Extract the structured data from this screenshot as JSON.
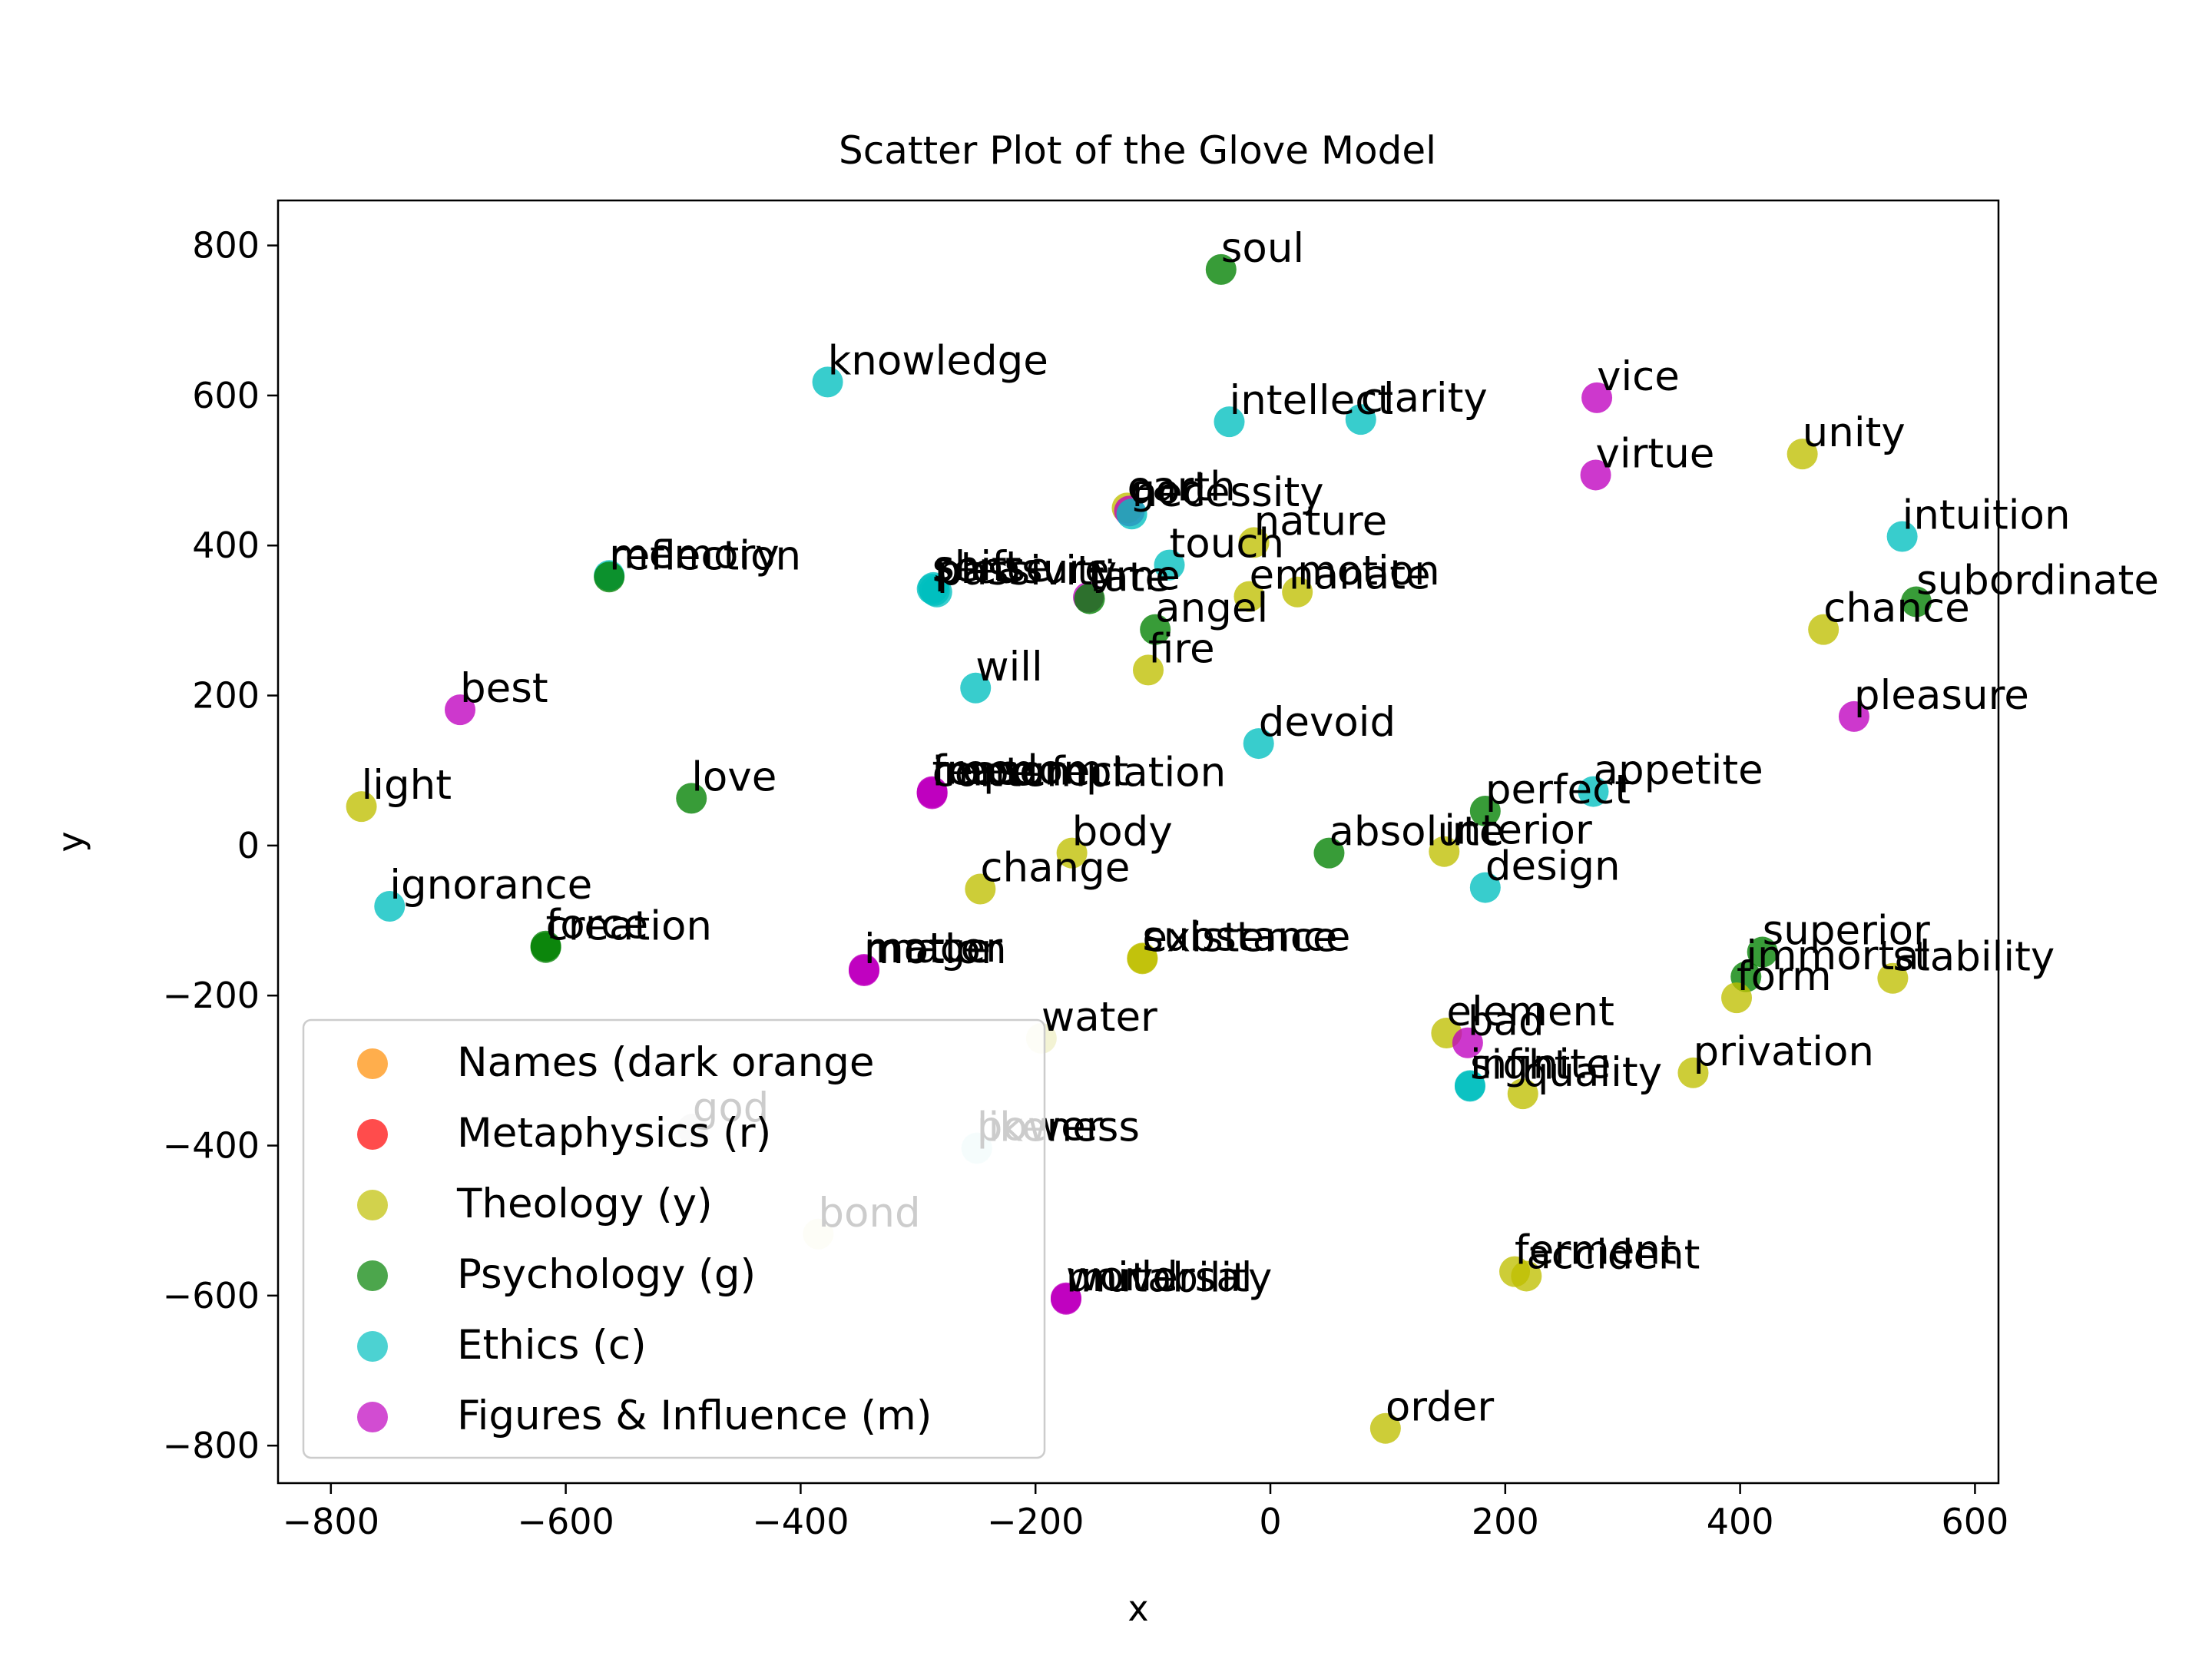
{
  "chart_data": {
    "type": "scatter",
    "title": "Scatter Plot of the Glove Model",
    "xlabel": "x",
    "ylabel": "y",
    "xlim": [
      -845,
      620
    ],
    "ylim": [
      -850,
      860
    ],
    "xticks": [
      -800,
      -600,
      -400,
      -200,
      0,
      200,
      400,
      600
    ],
    "yticks": [
      800,
      600,
      400,
      200,
      0,
      -200,
      -400,
      -600,
      -800
    ],
    "xtick_labels": [
      "−800",
      "−600",
      "−400",
      "−200",
      "0",
      "200",
      "400",
      "600"
    ],
    "ytick_labels": [
      "800",
      "600",
      "400",
      "200",
      "0",
      "−200",
      "−400",
      "−600",
      "−800"
    ],
    "grid": false,
    "legend_position": "lower-left",
    "legend": [
      {
        "label": "Names (dark orange",
        "color": "#ff8c00"
      },
      {
        "label": "Metaphysics (r)",
        "color": "#ff0000"
      },
      {
        "label": "Theology (y)",
        "color": "#bfbf00"
      },
      {
        "label": "Psychology (g)",
        "color": "#008000"
      },
      {
        "label": "Ethics (c)",
        "color": "#00bfbf"
      },
      {
        "label": "Figures & Influence (m)",
        "color": "#bf00bf"
      }
    ],
    "points": [
      {
        "label": "soul",
        "x": -42,
        "y": 768,
        "color": "#008000"
      },
      {
        "label": "knowledge",
        "x": -377,
        "y": 618,
        "color": "#00bfbf"
      },
      {
        "label": "intellect",
        "x": -35,
        "y": 565,
        "color": "#00bfbf"
      },
      {
        "label": "clarity",
        "x": 77,
        "y": 568,
        "color": "#00bfbf"
      },
      {
        "label": "vice",
        "x": 278,
        "y": 597,
        "color": "#bf00bf"
      },
      {
        "label": "virtue",
        "x": 277,
        "y": 494,
        "color": "#bf00bf"
      },
      {
        "label": "unity",
        "x": 453,
        "y": 522,
        "color": "#bfbf00"
      },
      {
        "label": "earth",
        "x": -122,
        "y": 450,
        "color": "#bfbf00"
      },
      {
        "label": "god",
        "x": -120,
        "y": 446,
        "color": "#bf00bf"
      },
      {
        "label": "necessity",
        "x": -118,
        "y": 442,
        "color": "#00bfbf"
      },
      {
        "label": "nature",
        "x": -14,
        "y": 404,
        "color": "#bfbf00"
      },
      {
        "label": "touch",
        "x": -86,
        "y": 374,
        "color": "#00bfbf"
      },
      {
        "label": "intuition",
        "x": 538,
        "y": 412,
        "color": "#00bfbf"
      },
      {
        "label": "memory",
        "x": -563,
        "y": 360,
        "color": "#00bfbf"
      },
      {
        "label": "reflection",
        "x": -563,
        "y": 358,
        "color": "#008000"
      },
      {
        "label": "sense",
        "x": -288,
        "y": 342,
        "color": "#00bfbf"
      },
      {
        "label": "pleasure",
        "x": -286,
        "y": 340,
        "color": "#00bfbf"
      },
      {
        "label": "passivity",
        "x": -284,
        "y": 338,
        "color": "#00bfbf"
      },
      {
        "label": "shift",
        "x": -287,
        "y": 344,
        "color": "#00bfbf"
      },
      {
        "label": "time",
        "x": -155,
        "y": 331,
        "color": "#bf00bf"
      },
      {
        "label": "fate",
        "x": -154,
        "y": 329,
        "color": "#008000"
      },
      {
        "label": "emanate",
        "x": -18,
        "y": 332,
        "color": "#bfbf00"
      },
      {
        "label": "motion",
        "x": 23,
        "y": 338,
        "color": "#bfbf00"
      },
      {
        "label": "subordinate",
        "x": 550,
        "y": 325,
        "color": "#008000"
      },
      {
        "label": "angel",
        "x": -98,
        "y": 288,
        "color": "#008000"
      },
      {
        "label": "chance",
        "x": 471,
        "y": 288,
        "color": "#bfbf00"
      },
      {
        "label": "fire",
        "x": -104,
        "y": 234,
        "color": "#bfbf00"
      },
      {
        "label": "will",
        "x": -251,
        "y": 210,
        "color": "#00bfbf"
      },
      {
        "label": "best",
        "x": -690,
        "y": 181,
        "color": "#bf00bf"
      },
      {
        "label": "pleasure",
        "x": 497,
        "y": 172,
        "color": "#bf00bf"
      },
      {
        "label": "devoid",
        "x": -10,
        "y": 136,
        "color": "#00bfbf"
      },
      {
        "label": "freedom",
        "x": -288,
        "y": 72,
        "color": "#bf00bf"
      },
      {
        "label": "reason",
        "x": -288,
        "y": 71,
        "color": "#bf00bf"
      },
      {
        "label": "imperfect",
        "x": -288,
        "y": 70,
        "color": "#bf00bf"
      },
      {
        "label": "contemplation",
        "x": -288,
        "y": 69,
        "color": "#bf00bf"
      },
      {
        "label": "appetite",
        "x": 275,
        "y": 72,
        "color": "#00bfbf"
      },
      {
        "label": "light",
        "x": -774,
        "y": 52,
        "color": "#bfbf00"
      },
      {
        "label": "love",
        "x": -493,
        "y": 63,
        "color": "#008000"
      },
      {
        "label": "perfect",
        "x": 183,
        "y": 46,
        "color": "#008000"
      },
      {
        "label": "body",
        "x": -169,
        "y": -10,
        "color": "#bfbf00"
      },
      {
        "label": "absolute",
        "x": 50,
        "y": -10,
        "color": "#008000"
      },
      {
        "label": "interior",
        "x": 148,
        "y": -8,
        "color": "#bfbf00"
      },
      {
        "label": "change",
        "x": -247,
        "y": -58,
        "color": "#bfbf00"
      },
      {
        "label": "design",
        "x": 183,
        "y": -56,
        "color": "#00bfbf"
      },
      {
        "label": "ignorance",
        "x": -750,
        "y": -81,
        "color": "#00bfbf"
      },
      {
        "label": "force",
        "x": -617,
        "y": -134,
        "color": "#008000"
      },
      {
        "label": "creation",
        "x": -617,
        "y": -136,
        "color": "#008000"
      },
      {
        "label": "matter",
        "x": -346,
        "y": -165,
        "color": "#bf00bf"
      },
      {
        "label": "image",
        "x": -346,
        "y": -166,
        "color": "#bf00bf"
      },
      {
        "label": "motion",
        "x": -346,
        "y": -167,
        "color": "#bf00bf"
      },
      {
        "label": "substance",
        "x": -109,
        "y": -150,
        "color": "#bfbf00"
      },
      {
        "label": "existence",
        "x": -109,
        "y": -151,
        "color": "#bfbf00"
      },
      {
        "label": "superior",
        "x": 419,
        "y": -142,
        "color": "#008000"
      },
      {
        "label": "immortal",
        "x": 405,
        "y": -175,
        "color": "#008000"
      },
      {
        "label": "stability",
        "x": 530,
        "y": -177,
        "color": "#bfbf00"
      },
      {
        "label": "form",
        "x": 397,
        "y": -203,
        "color": "#bfbf00"
      },
      {
        "label": "water",
        "x": -195,
        "y": -257,
        "color": "#f0f0c8"
      },
      {
        "label": "element",
        "x": 150,
        "y": -250,
        "color": "#bfbf00"
      },
      {
        "label": "bad",
        "x": 168,
        "y": -263,
        "color": "#bf00bf"
      },
      {
        "label": "privation",
        "x": 360,
        "y": -303,
        "color": "#bfbf00"
      },
      {
        "label": "infinite",
        "x": 170,
        "y": -320,
        "color": "#00bfbf"
      },
      {
        "label": "sight",
        "x": 170,
        "y": -321,
        "color": "#00bfbf"
      },
      {
        "label": "quality",
        "x": 215,
        "y": -331,
        "color": "#bfbf00"
      },
      {
        "label": "god",
        "x": -492,
        "y": -378,
        "color": "#d8d8d8"
      },
      {
        "label": "power",
        "x": -250,
        "y": -403,
        "color": "#c8f0f0"
      },
      {
        "label": "likeness",
        "x": -250,
        "y": -404,
        "color": "#c8f0f0"
      },
      {
        "label": "bond",
        "x": -385,
        "y": -518,
        "color": "#f0f0c8"
      },
      {
        "label": "ferment",
        "x": 208,
        "y": -568,
        "color": "#bfbf00"
      },
      {
        "label": "accident",
        "x": 218,
        "y": -574,
        "color": "#bfbf00"
      },
      {
        "label": "world",
        "x": -174,
        "y": -603,
        "color": "#bf00bf"
      },
      {
        "label": "universal",
        "x": -174,
        "y": -604,
        "color": "#bf00bf"
      },
      {
        "label": "mutability",
        "x": -174,
        "y": -605,
        "color": "#bf00bf"
      },
      {
        "label": "order",
        "x": 98,
        "y": -777,
        "color": "#bfbf00"
      }
    ]
  }
}
